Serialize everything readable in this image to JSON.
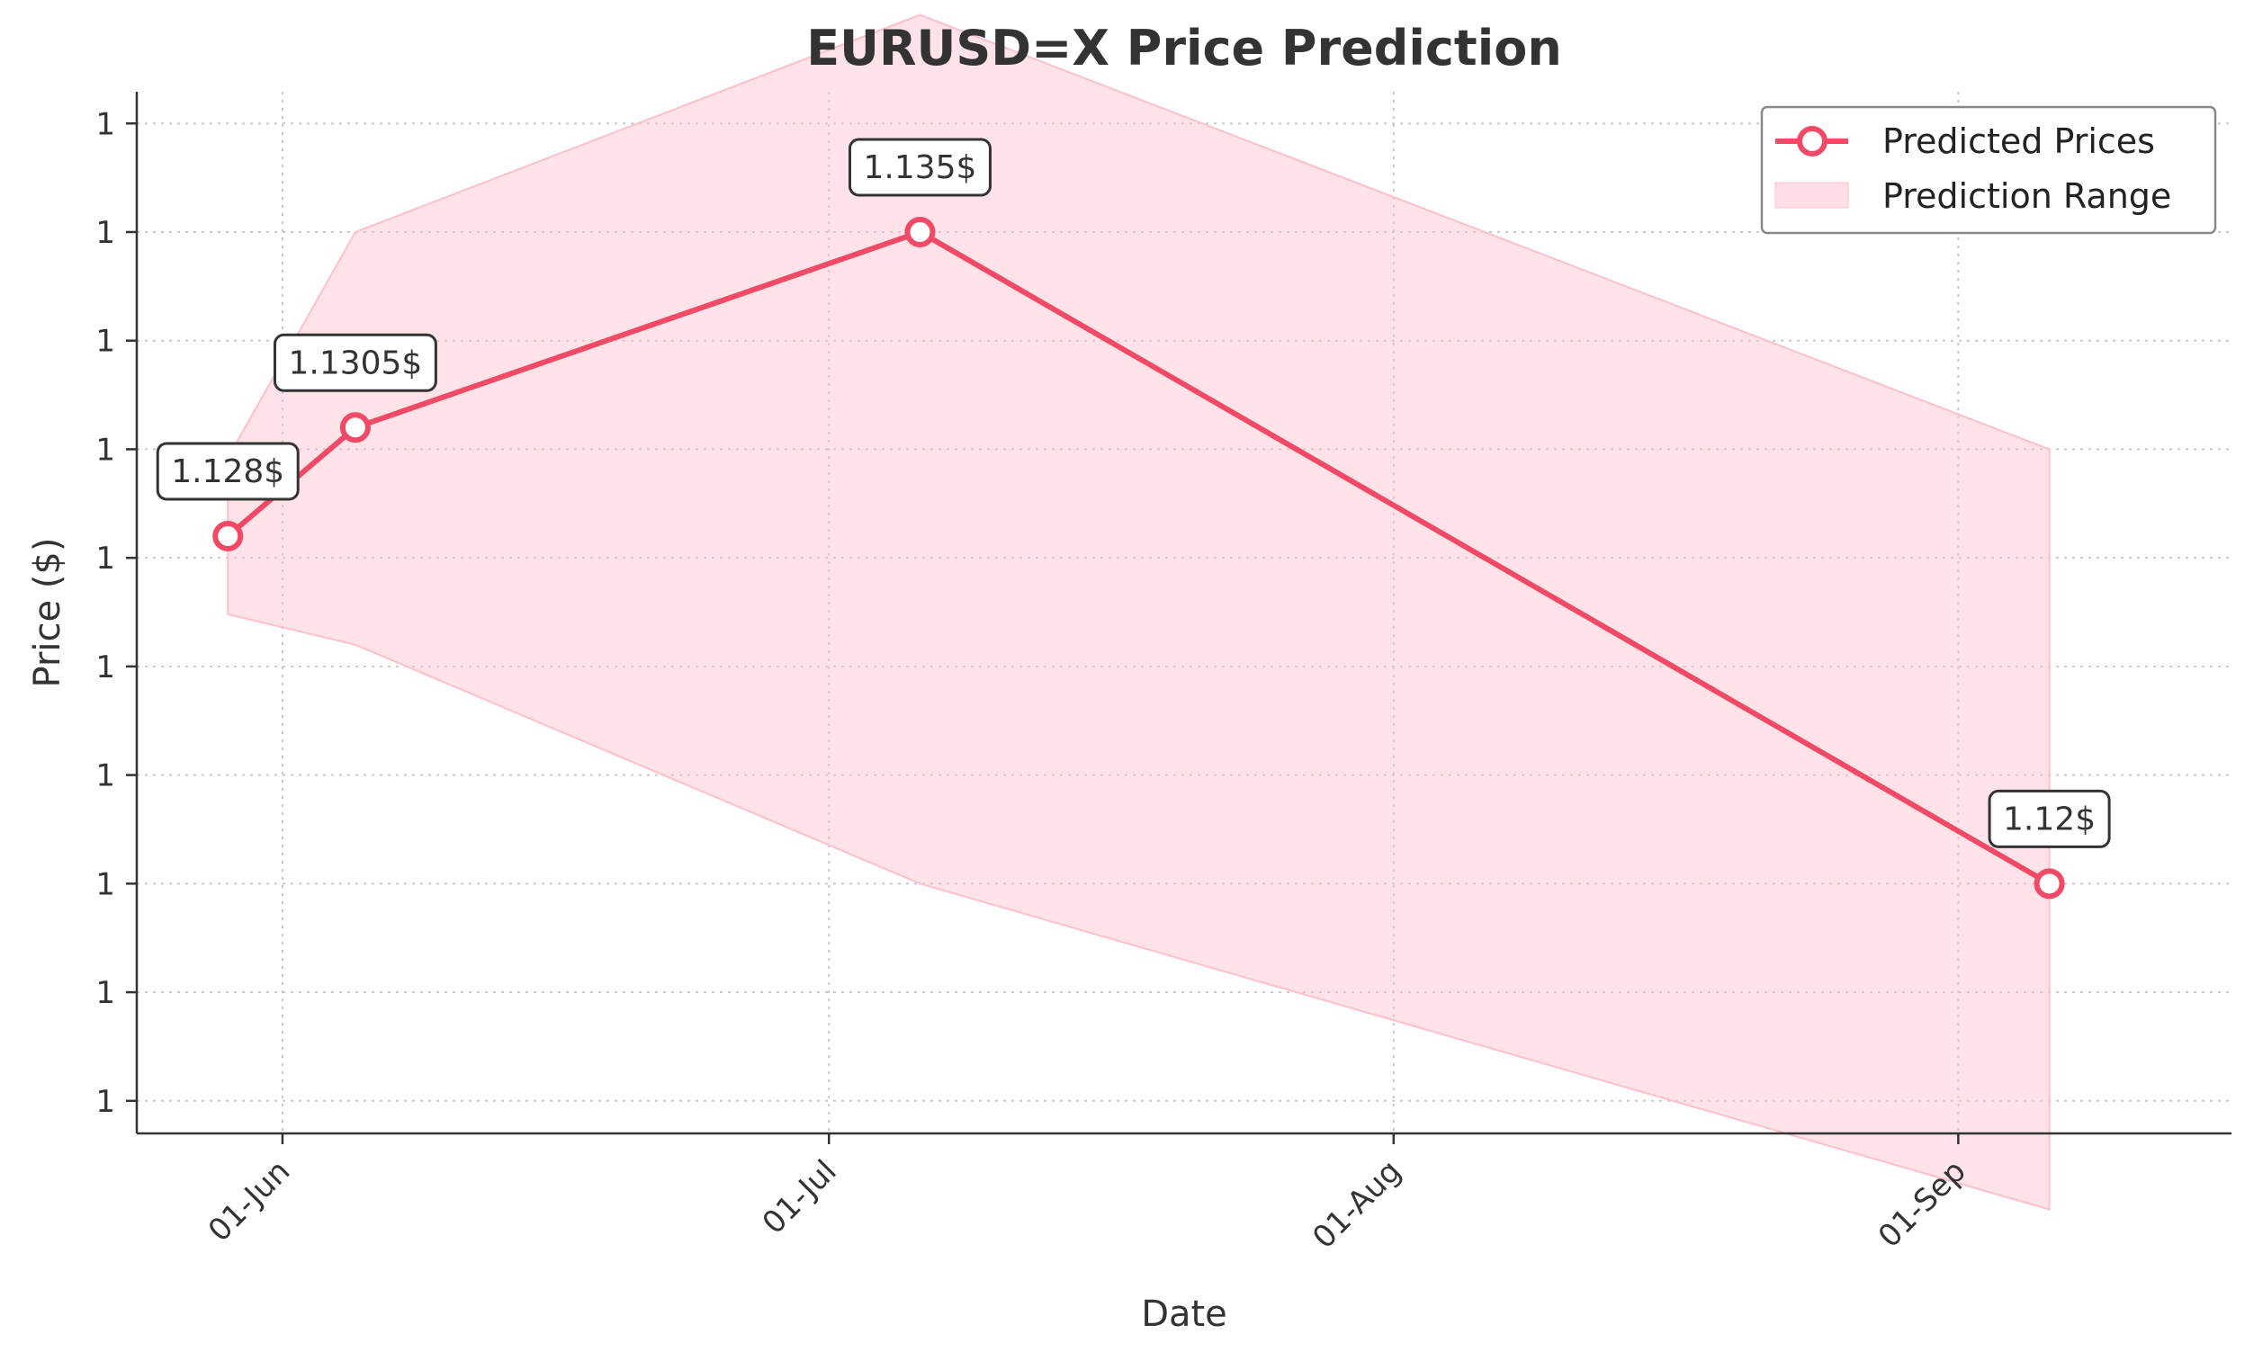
{
  "chart_data": {
    "type": "line",
    "title": "EURUSD=X Price Prediction",
    "xlabel": "Date",
    "ylabel": "Price ($)",
    "x_ticks": [
      {
        "date": "2025-06-01",
        "label": "01-Jun"
      },
      {
        "date": "2025-07-01",
        "label": "01-Jul"
      },
      {
        "date": "2025-08-01",
        "label": "01-Aug"
      },
      {
        "date": "2025-09-01",
        "label": "01-Sep"
      }
    ],
    "y_ticks": [
      {
        "value": 1.115,
        "label": "1"
      },
      {
        "value": 1.1175,
        "label": "1"
      },
      {
        "value": 1.12,
        "label": "1"
      },
      {
        "value": 1.1225,
        "label": "1"
      },
      {
        "value": 1.125,
        "label": "1"
      },
      {
        "value": 1.1275,
        "label": "1"
      },
      {
        "value": 1.13,
        "label": "1"
      },
      {
        "value": 1.1325,
        "label": "1"
      },
      {
        "value": 1.135,
        "label": "1"
      },
      {
        "value": 1.1375,
        "label": "1"
      }
    ],
    "xlim": [
      "2025-05-24",
      "2025-09-16"
    ],
    "ylim": [
      1.11425,
      1.13823
    ],
    "grid": true,
    "legend_position": "top-right",
    "series": [
      {
        "name": "Predicted Prices",
        "color": "#f24a66",
        "points": [
          {
            "date": "2025-05-29",
            "value": 1.128,
            "label": "1.128$"
          },
          {
            "date": "2025-06-05",
            "value": 1.1305,
            "label": "1.1305$"
          },
          {
            "date": "2025-07-06",
            "value": 1.135,
            "label": "1.135$"
          },
          {
            "date": "2025-09-06",
            "value": 1.12,
            "label": "1.12$"
          }
        ]
      },
      {
        "name": "Prediction Range",
        "color": "#ffc0cb",
        "type": "area",
        "points": [
          {
            "date": "2025-05-29",
            "low": 1.1262,
            "high": 1.1298
          },
          {
            "date": "2025-06-05",
            "low": 1.1255,
            "high": 1.135
          },
          {
            "date": "2025-07-06",
            "low": 1.12,
            "high": 1.14
          },
          {
            "date": "2025-09-06",
            "low": 1.1125,
            "high": 1.13
          }
        ]
      }
    ]
  }
}
